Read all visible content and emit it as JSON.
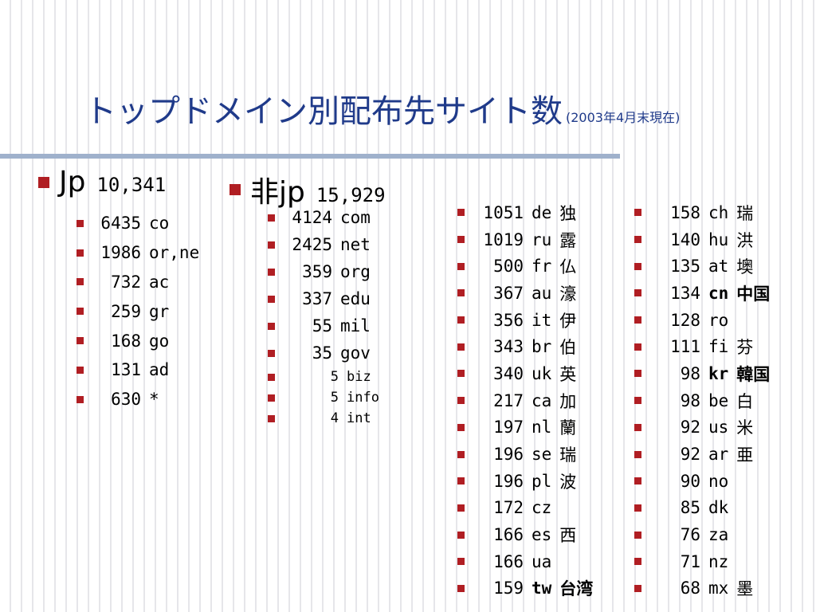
{
  "title": {
    "main": "トップドメイン別配布先サイト数",
    "sub": "(2003年4月末現在)"
  },
  "jp": {
    "label": "Jp",
    "count": "10,341",
    "items": [
      {
        "num": "6435",
        "code": "co"
      },
      {
        "num": "1986",
        "code": "or,ne"
      },
      {
        "num": "732",
        "code": "ac"
      },
      {
        "num": "259",
        "code": "gr"
      },
      {
        "num": "168",
        "code": "go"
      },
      {
        "num": "131",
        "code": "ad"
      },
      {
        "num": "630",
        "code": "*"
      }
    ]
  },
  "nonjp": {
    "label": "非jp",
    "count": "15,929",
    "items": [
      {
        "num": "4124",
        "code": "com"
      },
      {
        "num": "2425",
        "code": "net"
      },
      {
        "num": "359",
        "code": "org"
      },
      {
        "num": "337",
        "code": "edu"
      },
      {
        "num": "55",
        "code": "mil"
      },
      {
        "num": "35",
        "code": "gov"
      }
    ],
    "small_items": [
      {
        "num": "5",
        "code": "biz"
      },
      {
        "num": "5",
        "code": "info"
      },
      {
        "num": "4",
        "code": "int"
      }
    ]
  },
  "country_col1": [
    {
      "num": "1051",
      "code": "de",
      "kanji": "独"
    },
    {
      "num": "1019",
      "code": "ru",
      "kanji": "露"
    },
    {
      "num": "500",
      "code": "fr",
      "kanji": "仏"
    },
    {
      "num": "367",
      "code": "au",
      "kanji": "濠"
    },
    {
      "num": "356",
      "code": "it",
      "kanji": "伊"
    },
    {
      "num": "343",
      "code": "br",
      "kanji": "伯"
    },
    {
      "num": "340",
      "code": "uk",
      "kanji": "英"
    },
    {
      "num": "217",
      "code": "ca",
      "kanji": "加"
    },
    {
      "num": "197",
      "code": "nl",
      "kanji": "蘭"
    },
    {
      "num": "196",
      "code": "se",
      "kanji": "瑞"
    },
    {
      "num": "196",
      "code": "pl",
      "kanji": "波"
    },
    {
      "num": "172",
      "code": "cz",
      "kanji": ""
    },
    {
      "num": "166",
      "code": "es",
      "kanji": "西"
    },
    {
      "num": "166",
      "code": "ua",
      "kanji": ""
    },
    {
      "num": "159",
      "code": "tw",
      "kanji": "台湾",
      "bold": true
    }
  ],
  "country_col2": [
    {
      "num": "158",
      "code": "ch",
      "kanji": "瑞"
    },
    {
      "num": "140",
      "code": "hu",
      "kanji": "洪"
    },
    {
      "num": "135",
      "code": "at",
      "kanji": "墺"
    },
    {
      "num": "134",
      "code": "cn",
      "kanji": "中国",
      "bold": true
    },
    {
      "num": "128",
      "code": "ro",
      "kanji": ""
    },
    {
      "num": "111",
      "code": "fi",
      "kanji": "芬"
    },
    {
      "num": "98",
      "code": "kr",
      "kanji": "韓国",
      "bold": true
    },
    {
      "num": "98",
      "code": "be",
      "kanji": "白"
    },
    {
      "num": "92",
      "code": "us",
      "kanji": "米"
    },
    {
      "num": "92",
      "code": "ar",
      "kanji": "亜"
    },
    {
      "num": "90",
      "code": "no",
      "kanji": ""
    },
    {
      "num": "85",
      "code": "dk",
      "kanji": ""
    },
    {
      "num": "76",
      "code": "za",
      "kanji": ""
    },
    {
      "num": "71",
      "code": "nz",
      "kanji": ""
    },
    {
      "num": "68",
      "code": "mx",
      "kanji": "墨"
    }
  ],
  "colors": {
    "title": "#1f3a8a",
    "bullet": "#b01e23",
    "rule": "#9fb1cc"
  }
}
